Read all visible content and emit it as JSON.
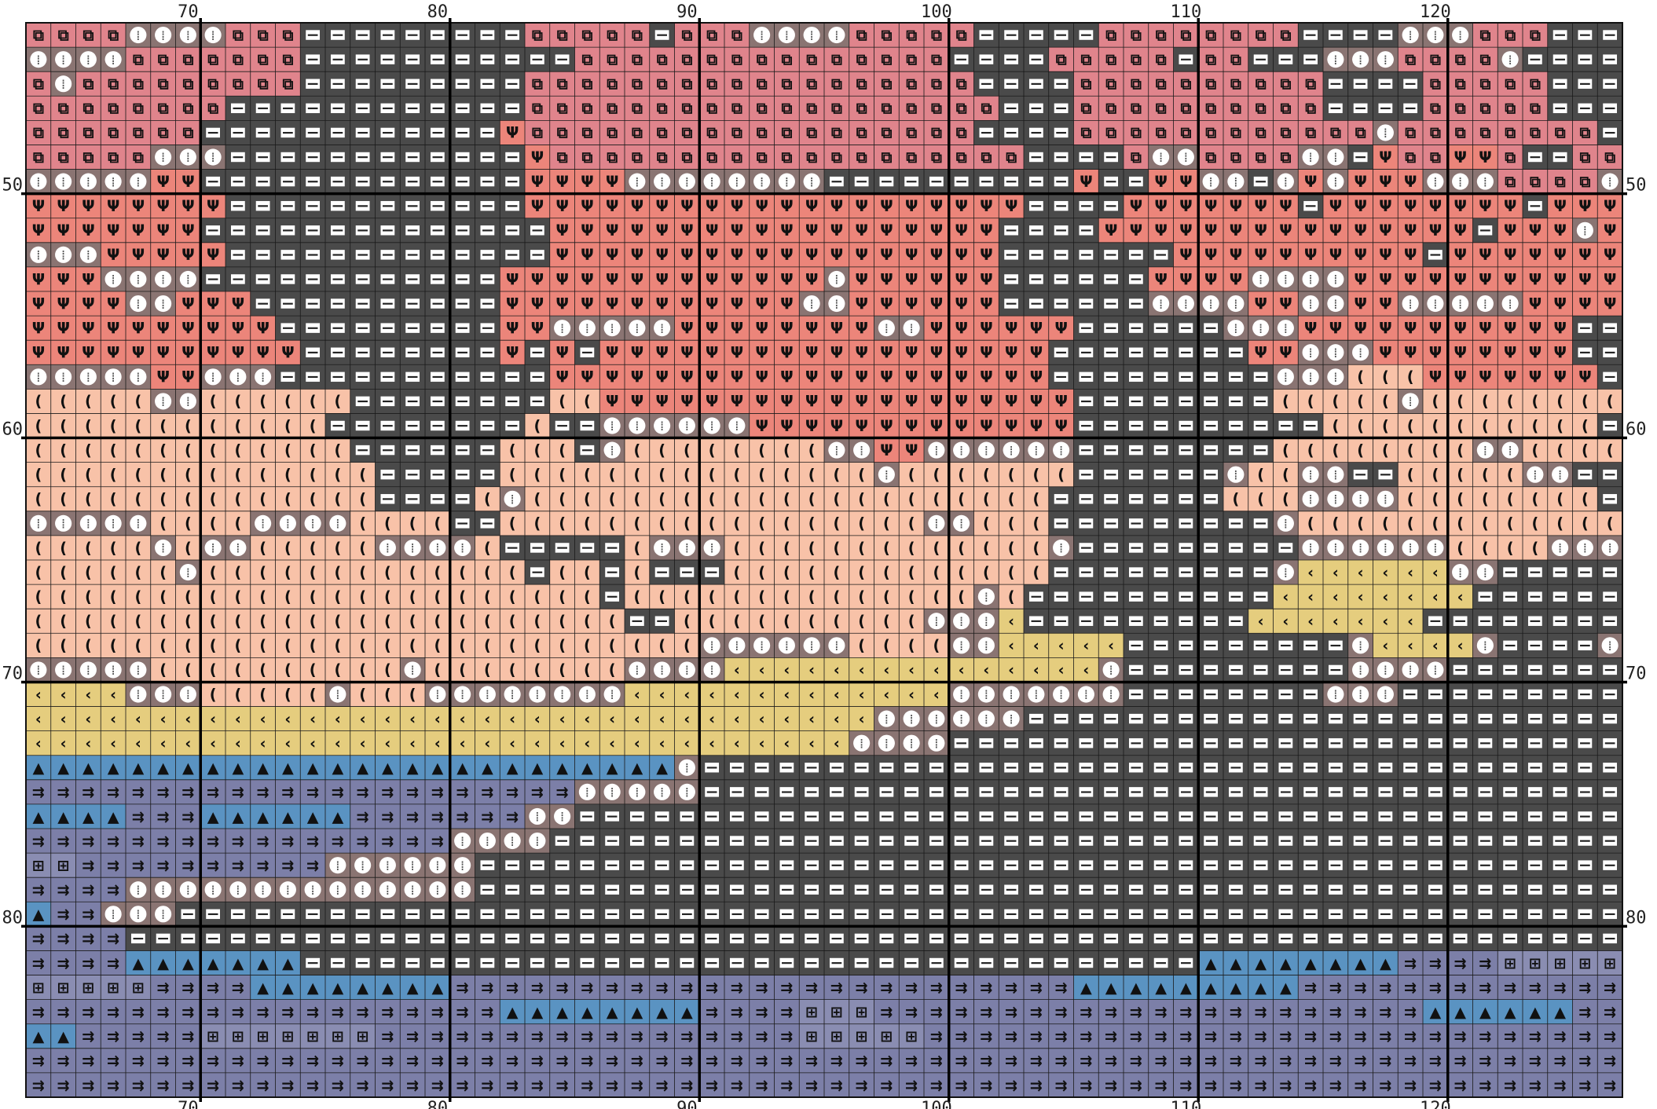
{
  "pattern": {
    "col_start": 64,
    "col_end": 127,
    "row_start": 44,
    "row_end": 87,
    "major_every": 10,
    "top_labels": [
      "70",
      "80",
      "90",
      "100",
      "110",
      "120"
    ],
    "bottom_labels": [
      "70",
      "80",
      "90",
      "100",
      "110",
      "120"
    ],
    "left_labels": [
      "50",
      "60",
      "70",
      "80"
    ],
    "right_labels": [
      "50",
      "60",
      "70",
      "80"
    ],
    "legend": {
      "P": {
        "color": "#e0848c",
        "symbol": "double-square",
        "glyph": "⧉"
      },
      "R": {
        "color": "#ec857a",
        "symbol": "trident",
        "glyph": "Ψ"
      },
      "S": {
        "color": "#f8c2a8",
        "symbol": "paren",
        "glyph": "("
      },
      "Y": {
        "color": "#e5cd7e",
        "symbol": "chevron-left",
        "glyph": "‹"
      },
      "B": {
        "color": "#5a93c2",
        "symbol": "triangle-up",
        "glyph": "▲"
      },
      "V": {
        "color": "#7c7fa8",
        "symbol": "double-arrow",
        "glyph": "⇉"
      },
      "Q": {
        "color": "#8a8db2",
        "symbol": "boxed-plus",
        "glyph": "⊞"
      },
      "G": {
        "color": "#8a7472",
        "symbol": "circle-dots",
        "glyph": "⦿"
      },
      "D": {
        "color": "#4a4a4a",
        "symbol": "minus-box",
        "glyph": "▭"
      }
    },
    "rows": [
      "PPPPGGGGPPPDDDDDDDDDPPPPPDPPPGGGGPPPPPDDDDDPPPPPPPPDDDDGGGPPPDDDD",
      "GGGGPPPPPPPDDDDDDDDDDDPPPPPPPPPPPPPPPDDDDPPPPPDPPDDDGGGPPPPGDDDDDP",
      "PGPPPPPPPPPDDDDDDDDDPPPPPPPPPPPPPPPPPPDDDDPPPPPPPPPPDDDDPPPPPDDDDDG",
      "PPPPPPPPDDDDDDDDDDDDPPPPPPPPPPPPPPPPPPPDDDPPPPPPPPPPDDDDPPPPPDDDPPDP",
      "PPPPPPPDDDDDDDDDDDDRPPPPPPPPPPPPPPPPPPDDDDPPPPPPPPPPPPGPPPPPPPPDDPPD",
      "PPPPPGGGDDDDDDDDDDDDRPPPPPPPPPPPPPPPPPPPDDDDPGGPPPPGGDRPPRRPDDPPPPPD",
      "GGGGGRRDDDDDDDDDDDDDRRRRGGGGGGGGDDDDDDDDDDRDDRRGGDGRGRRRGGGPPPPGGRDD",
      "RRRRRRRRDDDDDDDDDDDDRRRRRRRRRRRRRRRRRRRRDDDDRRRRRRRDRRRRRRRRDRRRDDDD",
      "RRRRRRRDDDDDDDDDDDDDDRRRRRRRRRRRRRRRRRRDDDDRRRRRRRRRRRRRRRDRRRGRGRDD",
      "GGGRRRRRDDDDDDDDDDDDDRRRRRRRRRRRRRRRRRRDDDDDDDRRRRRRRRRRDRRRRRRRDDD",
      "RRRGGGGDDDDDDDDDDDDRRRRRRRRRRRRRGRRRRRRDDDDDDRRRRGGGGRRRRRRRRRRRRDR",
      "RRRRGGRRRDDDDDDDDDDRRRRRRRRRRRRGGRRRRRRDDDDDDGGGGRRGGRRGGGGGRRRRRDDD",
      "RRRRRRRRRRDDDDDDDDDRRGGGGGRRRRRRRRGGRRRRRRDDDDDDGGGRRRRRRRRRRRDDDDDRR",
      "RRRRRRRRRRRDDDDDDDDRDRDRRRRRRRRRRRRRRRRRRDDDDDDDDRRGGGRRRRRRRRDDDDDRR",
      "GGGGGRRGGGDDDDDDDDDDDRRRRRRRRRRRRRRRRRRRRDDDDDDDDDGGGSSSRRRRRRRDDDDGDD",
      "SSSSSGGSSSSSSDDDDDDDDSSRRRRRRRRRRRRRRRRRRRDDDDDDDDSSSSSGSSSSSSSSSRRR",
      "SSSSSSSSSSSSDDDDDDDDSDDGGGGGGRRRRRRRRRRRRRDDDDDDDDDDSSSSSSSSSSSDDDGGG",
      "SSSSSSSSSSSSSDDDDDDSSSDGSSSSSSSSGGRRGGGGGGDDDDDDDDSSSSSSSSGGSSSSGGDDS",
      "SSSSSSSSSSSSSSDDDDDSSSSSSSSSSSSSSSGSSSSSSSDDDDDDGSSGGDDSSSSSGGDDDSSSS",
      "SSSSSSSSSSSSSSDDDDSGSSSSSSSSSSSSSSSSSSSSSDDDDDDDSSSGGGGSSSSSSSSDDDSSS",
      "GGGGGSSSSGGGGSSSSDDSSSSSSSSSSSSSSSSSGGSSSDDDDDDDDDGSSSSSSSSSSSSSDDDSG",
      "SSSSSGSGGSSSSSGGGGSDDDDDSGGGSSSSSSSSSSSSSGDDDDDDDDDGGGGGGSSSSGGGDDGGY",
      "SSSSSSGSSSSSSSSSSSSSDSSDSDDDSSSSSSSSSSSSSDDDDDDDDDGYYYYYYGGDDDDDYYY",
      "SSSSSSSSSSSSSSSSSSSSSSSDSSSSSSSSSSSSSSGSDDDDDDDDDDYYYYYYYYDDDDDDGGD",
      "SSSSSSSSSSSSSSSSSSSSSSSSDDSSSSSSSSSSGGGYDDDDDDDDDYYYYYYYDDDDDDDDDDD",
      "SSSSSSSSSSSSSSSSSSSSSSSSSSSGGGGGGSSSSGGYYYYYDDDDDDDDDGYYYYGDDDDGGGDDGD",
      "GGGGGSSSSSSSSSSGSSSSSSSSGGGGYYYYYYYYYYYYYYYGDDDDDDDDDGGGGDDDDDDDDDDD",
      "YYYYGGGSSSSSGSSSGGGGGGGGYYYYYYYYYYYYYGGGGGGGDDDDDDDDGGGDDDDDDDDDDDD",
      "YYYYYYYYYYYYYYYYYYYYYYYYYYYYYYYYYYGGGGGGDDDDDDDDDDDDDDDDDDDDDDDDDDD",
      "YYYYYYYYYYYYYYYYYYYYYYYYYYYYYYYYYGGGGDDDDDDDDDDDDDDDDDDDDDDDDDDDDDD",
      "BBBBBBBBBBBBBBBBBBBBBBBBBBGDDDDDDDDDDDDDDDDDDDDDDDDDDDDDDDDDDDDDDDG",
      "VVVVVVVVVVVVVVVVVVVVVVGGGGGDDDDDDDDDDDDDDDDDDDDDDDDDDDDDDDDDDDDDDDD",
      "BBBBVVVBBBBBBVVVVVVVGGDDDDDDDDDDDDDDDDDDDDDDDDDDDDDDDDDDDDDDDDDDDDD",
      "VVVVVVVVVVVVVVVVVGGGGDDDDDDDDDDDDDDDDDDDDDDDDDDDDDDDDDDDDDDDDDDDDDD",
      "QQVVVVVVVVVVGGGGGGDDDDDDDDDDDDDDDDDDDDDDDDDDDDDDDDDDDDDDDDDDDDDDDDD",
      "VVVVGGGGGGGGGGGGGGDDDDDDDDDDDDDDDDDDDDDDDDDDDDDDDDDDDDDDDDDDDDDDDDD",
      "BVVGGGDDDDDDDDDDDDDDDDDDDDDDDDDDDDDDDDDDDDDDDDDDDDDDDDDDDDDDDDDDDDD",
      "VVVVDDDDDDDDDDDDDDDDDDDDDDDDDDDDDDDDDDDDDDDDDDDDDDDDDDDDDDDDDDDDVV",
      "VVVVBBBBBBBDDDDDDDDDDDDDDDDDDDDDDDDDDDDDDDDDDDDBBBBBBBBVVVVQQQQQQQ",
      "QQQQQVVVVBBBBBBBBVVVVVVVVVVVVVVVVVVVVVVVVVBBBBBBBBBVVVVVVVVVVVVVVVV",
      "VVVVVVVVVVVVVVVVVVVBBBBBBBBVVVVQQQVVVVVVVVVVVVVVVVVVVVVVBBBBBBVVVVV",
      "BBVVVVVQQQQQQQVVVVVVVVVVVVVVVVVQQQQQVVVVVVVVVVVVVVVVVVVVVVVVVVVVVVV",
      "VVVVVVVVVVVVVVVVVVVVVVVVVVVVVVVVVVVVVVVVVVVVVVVVVVVVVVVVVVVVVVVVVV",
      "VVVVVVVVVVVVVVVVVVVVVVVVVVVVVVVVVVVVVVVVVVVVVVVVVVVVVVVVVVVVVVVVVV"
    ]
  }
}
